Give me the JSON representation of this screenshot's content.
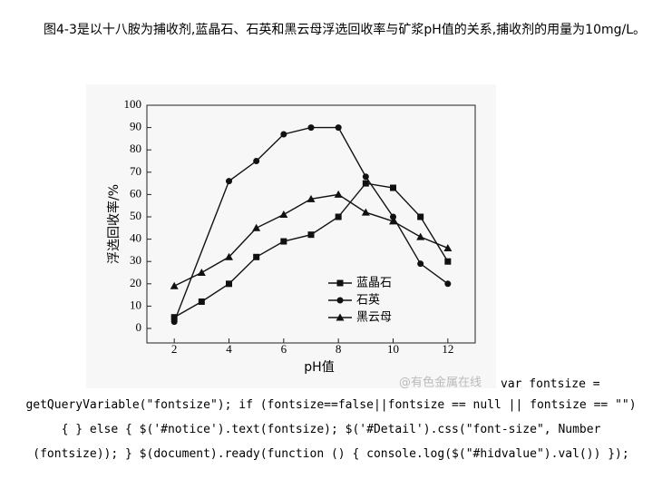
{
  "paragraph": "图4-3是以十八胺为捕收剂,蓝晶石、石英和黑云母浮选回收率与矿浆pH值的关系,捕收剂的用量为10mg/L。",
  "watermark": "@有色金属在线",
  "code_lines": [
    "var fontsize =",
    "getQueryVariable(\"fontsize\"); if (fontsize==false||fontsize == null || fontsize == \"\")",
    "{ } else { $('#notice').text(fontsize); $('#Detail').css(\"font-size\", Number",
    "(fontsize)); } $(document).ready(function () { console.log($(\"#hidvalue\").val()) });"
  ],
  "chart_data": {
    "type": "line",
    "x_label": "pH值",
    "y_label": "浮选回收率/%",
    "xlim": [
      1,
      13
    ],
    "ylim": [
      -6.5,
      100
    ],
    "xticks": [
      2,
      4,
      6,
      8,
      10,
      12
    ],
    "yticks": [
      0,
      10,
      20,
      30,
      40,
      50,
      60,
      70,
      80,
      90,
      100
    ],
    "series": [
      {
        "name": "蓝晶石",
        "color": "#111111",
        "marker": "square",
        "x": [
          2,
          3,
          4,
          5,
          6,
          7,
          8,
          9,
          10,
          11,
          12
        ],
        "values": [
          5,
          12,
          20,
          32,
          39,
          42,
          50,
          65,
          63,
          50,
          30
        ]
      },
      {
        "name": "石英",
        "color": "#111111",
        "marker": "circle",
        "x": [
          2,
          4,
          5,
          6,
          7,
          8,
          9,
          10,
          11,
          12
        ],
        "values": [
          3,
          66,
          75,
          87,
          90,
          90,
          68,
          50,
          29,
          20
        ]
      },
      {
        "name": "黑云母",
        "color": "#111111",
        "marker": "triangle",
        "x": [
          2,
          3,
          4,
          5,
          6,
          7,
          8,
          9,
          10,
          11,
          12
        ],
        "values": [
          19,
          25,
          32,
          45,
          51,
          58,
          60,
          52,
          48,
          41,
          36
        ]
      }
    ]
  }
}
